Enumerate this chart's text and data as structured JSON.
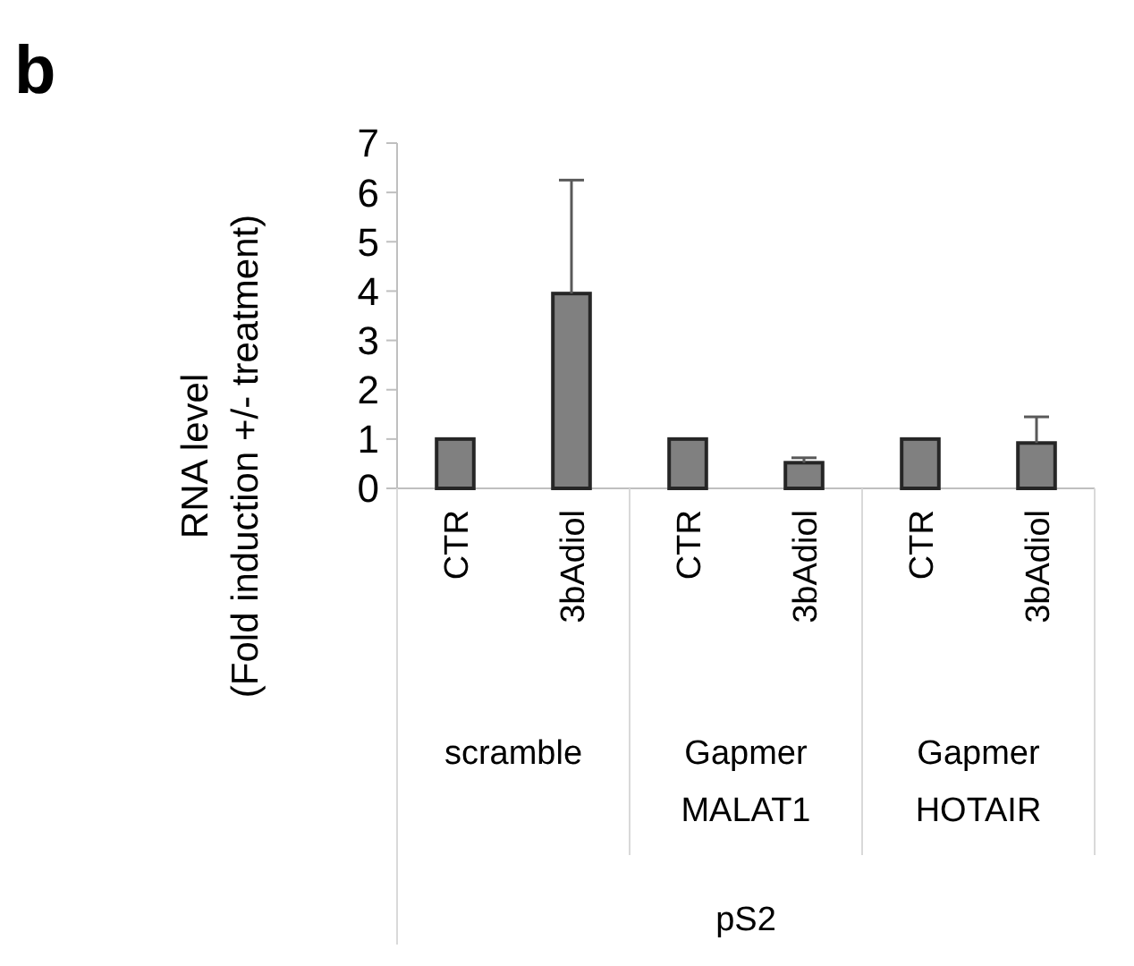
{
  "chart_data": {
    "type": "bar",
    "ylabel": "RNA level\n(Fold induction +/- treatment)",
    "categories": [
      "CTR",
      "3bAdiol",
      "CTR",
      "3bAdiol",
      "CTR",
      "3bAdiol"
    ],
    "values": [
      1,
      3.95,
      1,
      0.52,
      1,
      0.92
    ],
    "errors": [
      null,
      [
        3.95,
        6.25
      ],
      null,
      [
        0.52,
        0.62
      ],
      null,
      [
        0.92,
        1.45
      ]
    ],
    "color": "#808080",
    "ylim": [
      0,
      7
    ],
    "yticks": [
      0,
      1,
      2,
      3,
      4,
      5,
      6,
      7
    ],
    "grid": false,
    "annotations": [
      "b",
      "scramble",
      "Gapmer\nMALAT1",
      "Gapmer\nHOTAIR",
      "pS2"
    ]
  }
}
